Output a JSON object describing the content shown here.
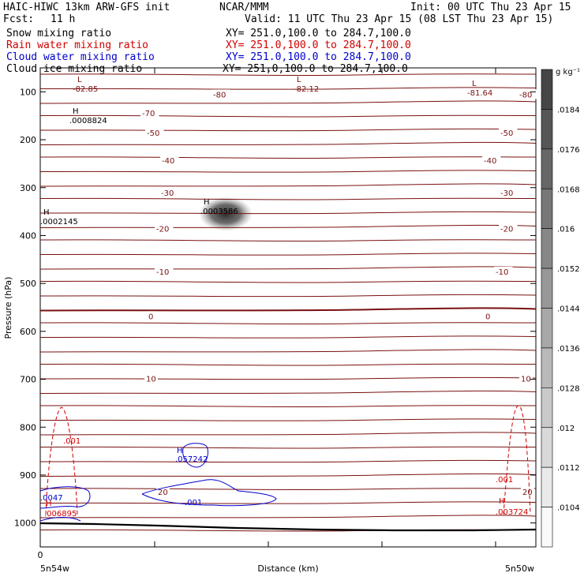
{
  "header": {
    "title_left": "HAIC-HIWC 13km ARW-GFS init",
    "title_mid": "NCAR/MMM",
    "init": "Init: 00 UTC Thu 23 Apr 15",
    "fcst_label": "Fcst:",
    "fcst_value": "11 h",
    "valid": "Valid: 11 UTC Thu 23 Apr 15 (08 LST Thu 23 Apr 15)",
    "fields": [
      {
        "name": "Snow mixing ratio",
        "xy": "XY= 251.0,100.0 to 284.7,100.0",
        "color": "#000000"
      },
      {
        "name": "Rain water mixing ratio",
        "xy": "XY= 251.0,100.0 to 284.7,100.0",
        "color": "#d10000"
      },
      {
        "name": "Cloud water mixing ratio",
        "xy": "XY= 251.0,100.0 to 284.7,100.0",
        "color": "#0000cc"
      },
      {
        "name": "Cloud ice mixing ratio",
        "xy": "XY= 251.0,100.0 to 284.7,100.0",
        "color": "#000000"
      }
    ]
  },
  "chart_data": {
    "type": "cross-section",
    "ylabel": "Pressure (hPa)",
    "xlabel": "Distance (km)",
    "ylim": [
      1050,
      50
    ],
    "yticks": [
      100,
      200,
      300,
      400,
      500,
      600,
      700,
      800,
      900,
      1000
    ],
    "xticks_left": "0",
    "x_end_left": "5n54w",
    "x_end_right": "5n50w",
    "colorbar": {
      "unit": "g kg⁻¹",
      "labels": [
        ".0184",
        ".0176",
        ".0168",
        ".016",
        ".0152",
        ".0144",
        ".0136",
        ".0128",
        ".012",
        ".0112",
        ".0104"
      ]
    },
    "temperature_contours": [
      {
        "label": "-80",
        "p": 105
      },
      {
        "label": "-70",
        "p": 144
      },
      {
        "label": "-50",
        "p": 185
      },
      {
        "label": "-40",
        "p": 243
      },
      {
        "label": "-30",
        "p": 310
      },
      {
        "label": "-20",
        "p": 385
      },
      {
        "label": "-10",
        "p": 475
      },
      {
        "label": "0",
        "p": 568
      },
      {
        "label": "10",
        "p": 698
      },
      {
        "label": "20",
        "p": 935
      }
    ],
    "extrema": [
      {
        "tag": "L",
        "value": "-82.85"
      },
      {
        "tag": "L",
        "value": "-82.12"
      },
      {
        "tag": "L",
        "value": "-81.64"
      },
      {
        "tag": "H",
        "value": ".0008824"
      },
      {
        "tag": "H",
        "value": ".0003586"
      },
      {
        "tag": "H",
        "value": ".0002145"
      },
      {
        "tag": "H",
        "value": ".057242"
      },
      {
        "tag": "H",
        "value": ".006895"
      },
      {
        "tag": "H",
        "value": ".003724"
      }
    ],
    "rain_contour_label": ".001",
    "cloud_contour_label": ".001",
    "cloud_left_value": ".0047"
  }
}
